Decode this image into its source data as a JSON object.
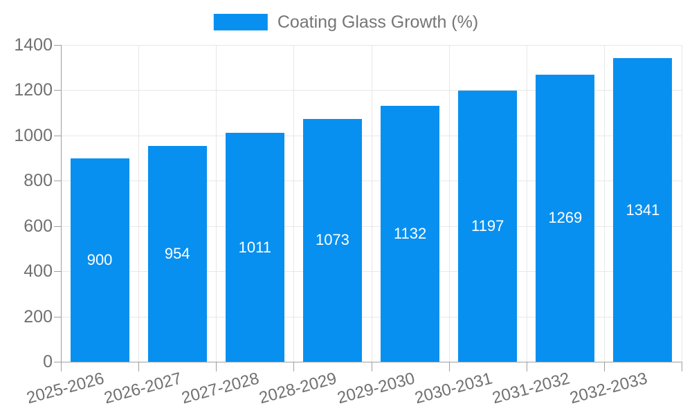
{
  "legend": {
    "items": [
      {
        "label": "Coating Glass Growth (%)",
        "color": "#0890f0"
      }
    ]
  },
  "chart_data": {
    "type": "bar",
    "title": "",
    "xlabel": "",
    "ylabel": "",
    "categories": [
      "2025-2026",
      "2026-2027",
      "2027-2028",
      "2028-2029",
      "2029-2030",
      "2030-2031",
      "2031-2032",
      "2032-2033"
    ],
    "series": [
      {
        "name": "Coating Glass Growth (%)",
        "values": [
          900,
          954,
          1011,
          1073,
          1132,
          1197,
          1269,
          1341
        ]
      }
    ],
    "values": [
      900,
      954,
      1011,
      1073,
      1132,
      1197,
      1269,
      1341
    ],
    "value_labels": [
      "900",
      "954",
      "1011",
      "1073",
      "1132",
      "1197",
      "1269",
      "1341"
    ],
    "yticks": [
      0,
      200,
      400,
      600,
      800,
      1000,
      1200,
      1400
    ],
    "ylim": [
      0,
      1400
    ],
    "grid": true,
    "legend_position": "top",
    "x_tick_rotation_deg": -15
  },
  "colors": {
    "bar": "#0890f0",
    "grid_line": "#e7e7e7",
    "axis_line": "#9e9e9e",
    "tick_text": "#707070",
    "legend_text": "#757575",
    "bar_label_text": "#ffffff",
    "background": "#ffffff"
  }
}
